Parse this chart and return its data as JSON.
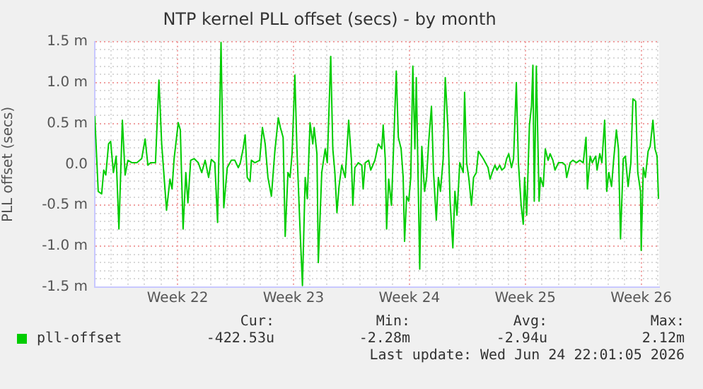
{
  "chart_data": {
    "type": "line",
    "title": "NTP kernel PLL offset (secs) - by month",
    "ylabel": "PLL offset (secs)",
    "xlim": [
      "2026-05-20T00:00",
      "2026-06-23T02:00"
    ],
    "xticks": [
      {
        "value": "2026-05-21",
        "label": null
      },
      {
        "value": "2026-05-22",
        "label": null
      },
      {
        "value": "2026-05-23",
        "label": null
      },
      {
        "value": "2026-05-24",
        "label": null
      },
      {
        "value": "2026-05-25",
        "label": "Week 22"
      },
      {
        "value": "2026-05-26",
        "label": null
      },
      {
        "value": "2026-05-27",
        "label": null
      },
      {
        "value": "2026-05-28",
        "label": null
      },
      {
        "value": "2026-05-29",
        "label": null
      },
      {
        "value": "2026-05-30",
        "label": null
      },
      {
        "value": "2026-05-31",
        "label": null
      },
      {
        "value": "2026-06-01",
        "label": "Week 23"
      },
      {
        "value": "2026-06-02",
        "label": null
      },
      {
        "value": "2026-06-03",
        "label": null
      },
      {
        "value": "2026-06-04",
        "label": null
      },
      {
        "value": "2026-06-05",
        "label": null
      },
      {
        "value": "2026-06-06",
        "label": null
      },
      {
        "value": "2026-06-07",
        "label": null
      },
      {
        "value": "2026-06-08",
        "label": "Week 24"
      },
      {
        "value": "2026-06-09",
        "label": null
      },
      {
        "value": "2026-06-10",
        "label": null
      },
      {
        "value": "2026-06-11",
        "label": null
      },
      {
        "value": "2026-06-12",
        "label": null
      },
      {
        "value": "2026-06-13",
        "label": null
      },
      {
        "value": "2026-06-14",
        "label": null
      },
      {
        "value": "2026-06-15",
        "label": "Week 25"
      },
      {
        "value": "2026-06-16",
        "label": null
      },
      {
        "value": "2026-06-17",
        "label": null
      },
      {
        "value": "2026-06-18",
        "label": null
      },
      {
        "value": "2026-06-19",
        "label": null
      },
      {
        "value": "2026-06-20",
        "label": null
      },
      {
        "value": "2026-06-21",
        "label": null
      },
      {
        "value": "2026-06-22",
        "label": "Week 26"
      },
      {
        "value": "2026-06-23",
        "label": null
      }
    ],
    "ylim": [
      -1.5,
      1.5
    ],
    "yticks": [
      {
        "value": -1.5,
        "label": "-1.5 m"
      },
      {
        "value": -1.4,
        "label": null
      },
      {
        "value": -1.3,
        "label": null
      },
      {
        "value": -1.2,
        "label": null
      },
      {
        "value": -1.1,
        "label": null
      },
      {
        "value": -1.0,
        "label": "-1.0 m"
      },
      {
        "value": -0.9,
        "label": null
      },
      {
        "value": -0.8,
        "label": null
      },
      {
        "value": -0.7,
        "label": null
      },
      {
        "value": -0.6,
        "label": null
      },
      {
        "value": -0.5,
        "label": "-0.5 m"
      },
      {
        "value": -0.4,
        "label": null
      },
      {
        "value": -0.3,
        "label": null
      },
      {
        "value": -0.2,
        "label": null
      },
      {
        "value": -0.1,
        "label": null
      },
      {
        "value": 0,
        "label": "0.0"
      },
      {
        "value": 0.1,
        "label": null
      },
      {
        "value": 0.2,
        "label": null
      },
      {
        "value": 0.3,
        "label": null
      },
      {
        "value": 0.4,
        "label": null
      },
      {
        "value": 0.5,
        "label": "0.5 m"
      },
      {
        "value": 0.6,
        "label": null
      },
      {
        "value": 0.7,
        "label": null
      },
      {
        "value": 0.8,
        "label": null
      },
      {
        "value": 0.9,
        "label": null
      },
      {
        "value": 1.0,
        "label": "1.0 m"
      },
      {
        "value": 1.1,
        "label": null
      },
      {
        "value": 1.2,
        "label": null
      },
      {
        "value": 1.3,
        "label": null
      },
      {
        "value": 1.4,
        "label": null
      },
      {
        "value": 1.5,
        "label": "1.5 m"
      }
    ],
    "grid": true,
    "legend": "bottom",
    "series": [
      {
        "name": "pll-offset",
        "color": "#00cc00",
        "x": [
          "2026-05-20T00:00",
          "2026-05-20T05:00",
          "2026-05-20T10:00",
          "2026-05-20T13:00",
          "2026-05-20T16:00",
          "2026-05-20T20:00",
          "2026-05-20T23:00",
          "2026-05-21T03:00",
          "2026-05-21T07:00",
          "2026-05-21T11:00",
          "2026-05-21T16:00",
          "2026-05-21T20:00",
          "2026-05-22T00:00",
          "2026-05-22T06:00",
          "2026-05-22T13:00",
          "2026-05-22T20:00",
          "2026-05-23T01:00",
          "2026-05-23T05:00",
          "2026-05-23T09:00",
          "2026-05-23T16:00",
          "2026-05-23T21:00",
          "2026-05-24T01:00",
          "2026-05-24T08:00",
          "2026-05-24T13:00",
          "2026-05-24T16:00",
          "2026-05-24T19:00",
          "2026-05-25T01:00",
          "2026-05-25T04:00",
          "2026-05-25T08:00",
          "2026-05-25T12:00",
          "2026-05-25T15:00",
          "2026-05-25T19:00",
          "2026-05-26T00:00",
          "2026-05-26T06:00",
          "2026-05-26T11:00",
          "2026-05-26T16:00",
          "2026-05-26T21:00",
          "2026-05-27T01:00",
          "2026-05-27T06:00",
          "2026-05-27T10:00",
          "2026-05-27T15:00",
          "2026-05-27T19:00",
          "2026-05-28T00:00",
          "2026-05-28T06:00",
          "2026-05-28T11:00",
          "2026-05-28T16:00",
          "2026-05-28T19:00",
          "2026-05-28T23:00",
          "2026-05-29T02:00",
          "2026-05-29T05:00",
          "2026-05-29T09:00",
          "2026-05-29T11:00",
          "2026-05-29T16:00",
          "2026-05-29T23:00",
          "2026-05-30T03:00",
          "2026-05-30T07:00",
          "2026-05-30T11:00",
          "2026-05-30T16:00",
          "2026-05-30T21:00",
          "2026-05-31T02:00",
          "2026-05-31T05:00",
          "2026-05-31T09:00",
          "2026-05-31T12:00",
          "2026-05-31T16:00",
          "2026-05-31T19:00",
          "2026-05-31T22:00",
          "2026-06-01T02:00",
          "2026-06-01T05:00",
          "2026-06-01T09:00",
          "2026-06-01T13:00",
          "2026-06-01T17:00",
          "2026-06-01T20:00",
          "2026-06-02T00:00",
          "2026-06-02T04:00",
          "2026-06-02T06:00",
          "2026-06-02T10:00",
          "2026-06-02T12:00",
          "2026-06-02T17:00",
          "2026-06-02T22:00",
          "2026-06-03T01:00",
          "2026-06-03T06:00",
          "2026-06-03T09:00",
          "2026-06-03T12:00",
          "2026-06-03T15:00",
          "2026-06-03T18:00",
          "2026-06-03T22:00",
          "2026-06-04T03:00",
          "2026-06-04T08:00",
          "2026-06-04T12:00",
          "2026-06-04T14:00",
          "2026-06-04T17:00",
          "2026-06-04T22:00",
          "2026-06-05T03:00",
          "2026-06-05T05:00",
          "2026-06-05T08:00",
          "2026-06-05T13:00",
          "2026-06-05T16:00",
          "2026-06-05T22:00",
          "2026-06-06T03:00",
          "2026-06-06T08:00",
          "2026-06-06T10:00",
          "2026-06-06T13:00",
          "2026-06-06T15:00",
          "2026-06-06T18:00",
          "2026-06-06T22:00",
          "2026-06-07T01:00",
          "2026-06-07T05:00",
          "2026-06-07T08:00",
          "2026-06-07T12:00",
          "2026-06-07T15:00",
          "2026-06-07T17:00",
          "2026-06-07T20:00",
          "2026-06-07T23:00",
          "2026-06-08T02:00",
          "2026-06-08T05:00",
          "2026-06-08T08:00",
          "2026-06-08T10:00",
          "2026-06-08T15:00",
          "2026-06-08T18:00",
          "2026-06-08T22:00",
          "2026-06-09T01:00",
          "2026-06-09T04:00",
          "2026-06-09T08:00",
          "2026-06-09T11:00",
          "2026-06-09T15:00",
          "2026-06-09T18:00",
          "2026-06-09T21:00",
          "2026-06-10T01:00",
          "2026-06-10T04:00",
          "2026-06-10T08:00",
          "2026-06-10T11:00",
          "2026-06-10T15:00",
          "2026-06-10T18:00",
          "2026-06-10T21:00",
          "2026-06-11T01:00",
          "2026-06-11T06:00",
          "2026-06-11T08:00",
          "2026-06-11T11:00",
          "2026-06-11T14:00",
          "2026-06-11T18:00",
          "2026-06-11T21:00",
          "2026-06-12T01:00",
          "2026-06-12T04:00",
          "2026-06-12T11:00",
          "2026-06-12T18:00",
          "2026-06-12T21:00",
          "2026-06-13T00:00",
          "2026-06-13T04:00",
          "2026-06-13T07:00",
          "2026-06-13T11:00",
          "2026-06-13T14:00",
          "2026-06-13T18:00",
          "2026-06-13T21:00",
          "2026-06-14T00:00",
          "2026-06-14T04:00",
          "2026-06-14T07:00",
          "2026-06-14T11:00",
          "2026-06-14T14:00",
          "2026-06-14T18:00",
          "2026-06-14T21:00",
          "2026-06-14T23:00",
          "2026-06-15T02:00",
          "2026-06-15T06:00",
          "2026-06-15T09:00",
          "2026-06-15T11:00",
          "2026-06-15T13:00",
          "2026-06-15T16:00",
          "2026-06-15T20:00",
          "2026-06-15T22:00",
          "2026-06-16T02:00",
          "2026-06-16T05:00",
          "2026-06-16T09:00",
          "2026-06-16T12:00",
          "2026-06-16T16:00",
          "2026-06-16T19:00",
          "2026-06-17T00:00",
          "2026-06-17T06:00",
          "2026-06-17T10:00",
          "2026-06-17T12:00",
          "2026-06-17T17:00",
          "2026-06-17T21:00",
          "2026-06-18T02:00",
          "2026-06-18T07:00",
          "2026-06-18T12:00",
          "2026-06-18T16:00",
          "2026-06-18T18:00",
          "2026-06-18T22:00",
          "2026-06-19T01:00",
          "2026-06-19T06:00",
          "2026-06-19T08:00",
          "2026-06-19T12:00",
          "2026-06-19T15:00",
          "2026-06-19T19:00",
          "2026-06-19T22:00",
          "2026-06-20T01:00",
          "2026-06-20T05:00",
          "2026-06-20T08:00",
          "2026-06-20T12:00",
          "2026-06-20T15:00",
          "2026-06-20T18:00",
          "2026-06-20T22:00",
          "2026-06-21T01:00",
          "2026-06-21T05:00",
          "2026-06-21T09:00",
          "2026-06-21T12:00",
          "2026-06-21T16:00",
          "2026-06-21T19:00",
          "2026-06-21T23:00",
          "2026-06-22T00:00",
          "2026-06-22T03:00",
          "2026-06-22T06:00",
          "2026-06-22T10:00",
          "2026-06-22T13:00",
          "2026-06-22T17:00",
          "2026-06-22T20:00",
          "2026-06-22T23:00",
          "2026-06-23T01:00"
        ],
        "values": [
          0.59,
          -0.33,
          -0.36,
          -0.07,
          -0.13,
          0.25,
          0.28,
          -0.1,
          0.1,
          -0.79,
          0.54,
          -0.13,
          0.05,
          0.02,
          0.02,
          0.07,
          0.31,
          -0.01,
          0.02,
          0.02,
          1.03,
          0.25,
          -0.56,
          -0.18,
          -0.3,
          0.07,
          0.51,
          0.42,
          -0.79,
          -0.1,
          -0.47,
          0.05,
          0.07,
          0.02,
          -0.1,
          0.05,
          -0.16,
          0.06,
          0.02,
          -0.71,
          1.49,
          -0.53,
          -0.04,
          0.05,
          0.05,
          -0.04,
          0.02,
          0.19,
          0.36,
          -0.16,
          -0.21,
          0.05,
          0.02,
          0.05,
          0.45,
          0.25,
          -0.16,
          -0.39,
          0.16,
          0.57,
          0.45,
          0.33,
          -0.88,
          -0.1,
          -0.16,
          0.13,
          1.09,
          0.19,
          -0.68,
          -1.48,
          -0.16,
          -0.42,
          0.51,
          0.25,
          0.45,
          0.13,
          -1.2,
          -0.1,
          0.19,
          0.02,
          1.32,
          0.19,
          -0.1,
          -0.59,
          -0.27,
          -0.01,
          -0.16,
          0.54,
          0.05,
          -0.5,
          -0.04,
          0.02,
          -0.01,
          -0.3,
          0.02,
          0.05,
          -0.07,
          0.05,
          0.25,
          0.19,
          0.48,
          0.07,
          -0.79,
          -0.18,
          -0.5,
          0.19,
          1.14,
          0.33,
          0.19,
          -0.16,
          -0.94,
          -0.39,
          -0.45,
          -0.16,
          1.2,
          0.19,
          1.06,
          -1.28,
          0.22,
          -0.33,
          -0.16,
          0.28,
          0.71,
          -0.1,
          -0.68,
          -0.16,
          -0.33,
          0.07,
          1.06,
          0.42,
          -0.45,
          -1.02,
          -0.33,
          -0.62,
          0.02,
          -0.1,
          0.88,
          0.02,
          -0.16,
          -0.5,
          -0.16,
          -0.1,
          0.16,
          0.07,
          -0.04,
          -0.18,
          -0.1,
          -0.01,
          -0.07,
          -0.01,
          -0.07,
          -0.04,
          0.07,
          0.13,
          -0.04,
          0.07,
          1.0,
          0.02,
          -0.5,
          -0.73,
          -0.16,
          -0.62,
          0.48,
          0.71,
          1.21,
          -0.45,
          1.2,
          -0.45,
          -0.16,
          -0.27,
          0.19,
          0.05,
          0.13,
          0.05,
          -0.07,
          0.02,
          0.02,
          -0.01,
          -0.16,
          0.02,
          0.05,
          0.02,
          0.05,
          0.02,
          0.33,
          -0.3,
          0.1,
          0.02,
          0.1,
          -0.07,
          0.13,
          0.02,
          0.54,
          -0.33,
          -0.1,
          -0.27,
          0.05,
          0.42,
          0.19,
          -0.91,
          0.07,
          0.1,
          -0.27,
          0.02,
          0.8,
          0.77,
          -0.1,
          -0.33,
          -1.05,
          -0.04,
          -0.16,
          0.16,
          0.22,
          0.54,
          0.19,
          0.1,
          -0.42
        ]
      }
    ],
    "annotations": [
      "Cur:",
      "Min:",
      "Avg:",
      "Max:",
      "-422.53u",
      "-2.28m",
      "-2.94u",
      "2.12m",
      "Last update: Wed Jun 24 22:01:05 2026"
    ]
  }
}
